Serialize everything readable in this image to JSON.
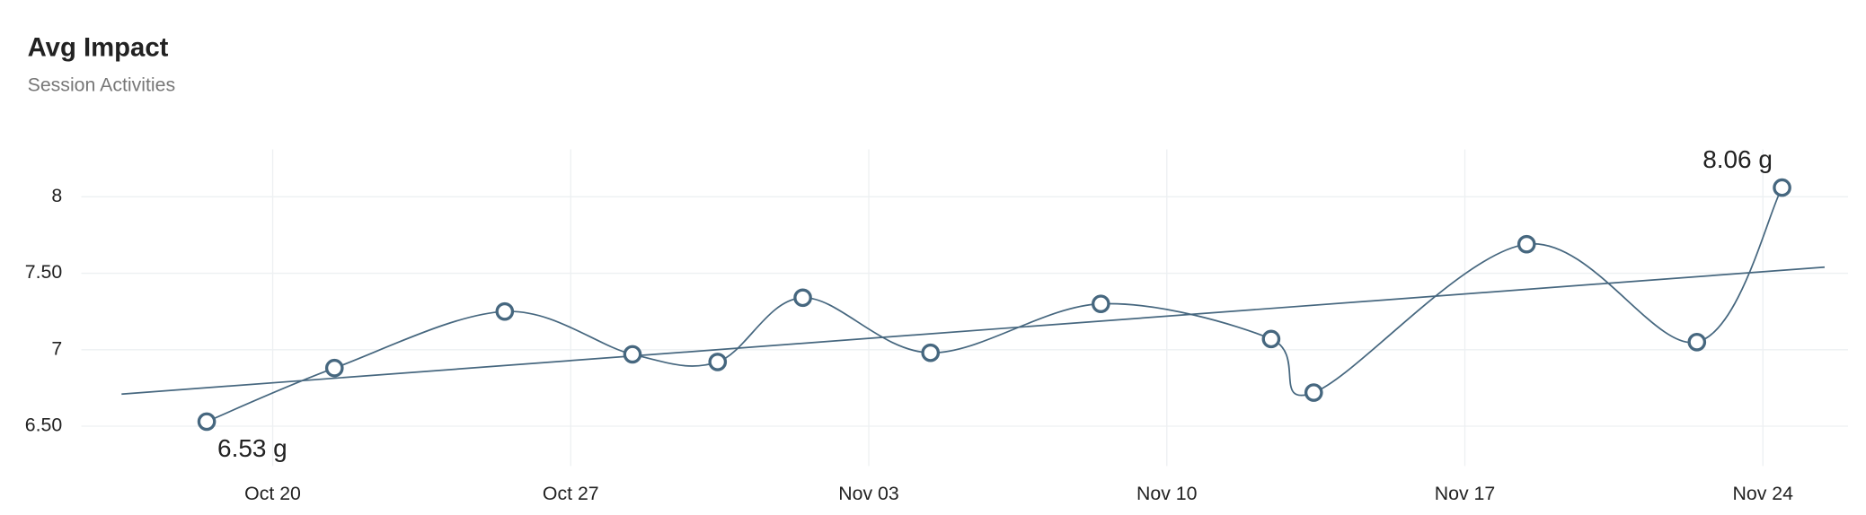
{
  "chart_data": {
    "type": "line",
    "title": "Avg Impact",
    "subtitle": "Session Activities",
    "x": [
      "Oct 18",
      "Oct 21",
      "Oct 25",
      "Oct 28",
      "Oct 30",
      "Nov 01",
      "Nov 04",
      "Nov 08",
      "Nov 12",
      "Nov 13",
      "Nov 18",
      "Nov 22",
      "Nov 24"
    ],
    "values": [
      6.53,
      6.88,
      7.25,
      6.97,
      6.92,
      7.34,
      6.98,
      7.3,
      7.07,
      6.72,
      7.69,
      7.05,
      8.06
    ],
    "value_labels": [
      "6.53 g",
      null,
      null,
      null,
      null,
      null,
      null,
      null,
      null,
      null,
      null,
      null,
      "8.06 g"
    ],
    "color": "#46677f",
    "trend": {
      "x": [
        "Oct 16",
        "Nov 25"
      ],
      "values": [
        6.71,
        7.54
      ]
    },
    "xlim": [
      "Oct 15",
      "Nov 26"
    ],
    "xticks": [
      "Oct 20",
      "Oct 27",
      "Nov 03",
      "Nov 10",
      "Nov 17",
      "Nov 24"
    ],
    "ylim": [
      6.24,
      8.31
    ],
    "yticks": [
      {
        "value": 6.5,
        "label": "6.50"
      },
      7,
      {
        "value": 7.5,
        "label": "7.50"
      },
      8
    ],
    "grid": true
  }
}
